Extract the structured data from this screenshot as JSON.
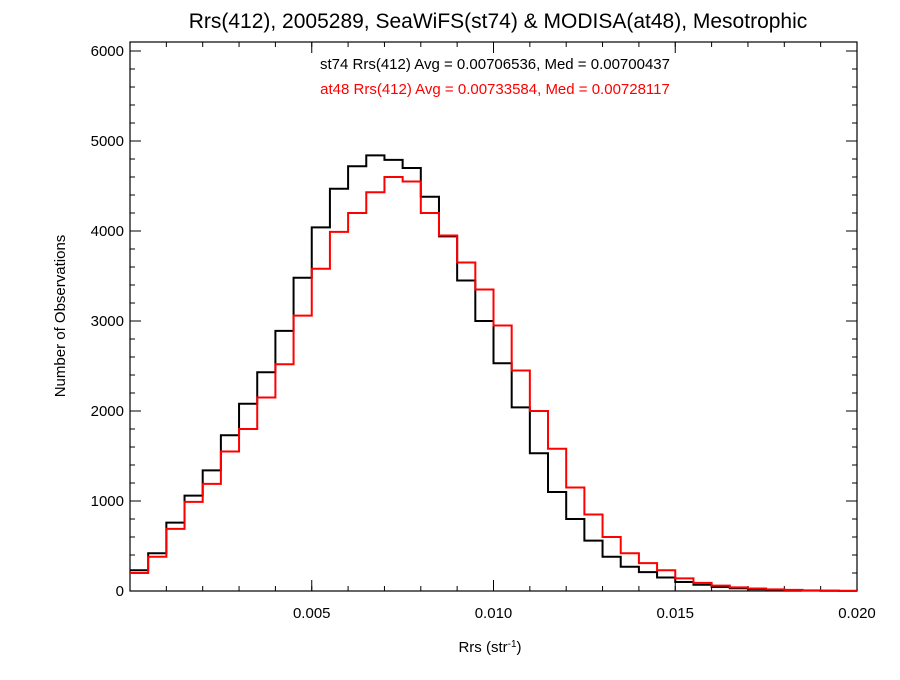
{
  "chart_data": {
    "type": "line",
    "title": "Rrs(412), 2005289, SeaWiFS(st74) & MODISA(at48), Mesotrophic",
    "xlabel_main": "Rrs (str",
    "xlabel_sup": "-1",
    "xlabel_close": ")",
    "ylabel": "Number of Observations",
    "xlim": [
      0.0,
      0.02
    ],
    "ylim": [
      0,
      6100
    ],
    "x_ticks": [
      {
        "value": 0.005,
        "label": "0.005"
      },
      {
        "value": 0.01,
        "label": "0.010"
      },
      {
        "value": 0.015,
        "label": "0.015"
      },
      {
        "value": 0.02,
        "label": "0.020"
      }
    ],
    "y_ticks": [
      {
        "value": 0,
        "label": "0"
      },
      {
        "value": 1000,
        "label": "1000"
      },
      {
        "value": 2000,
        "label": "2000"
      },
      {
        "value": 3000,
        "label": "3000"
      },
      {
        "value": 4000,
        "label": "4000"
      },
      {
        "value": 5000,
        "label": "5000"
      },
      {
        "value": 6000,
        "label": "6000"
      }
    ],
    "annotations": [
      {
        "text": "st74 Rrs(412) Avg = 0.00706536, Med = 0.00700437",
        "color": "#000000"
      },
      {
        "text": "at48 Rrs(412) Avg = 0.00733584, Med = 0.00728117",
        "color": "#ff0000"
      }
    ],
    "series": [
      {
        "color": "#000000",
        "points": [
          [
            0.0,
            230
          ],
          [
            0.0005,
            420
          ],
          [
            0.001,
            760
          ],
          [
            0.0015,
            1060
          ],
          [
            0.002,
            1340
          ],
          [
            0.0025,
            1730
          ],
          [
            0.003,
            2080
          ],
          [
            0.0035,
            2430
          ],
          [
            0.004,
            2890
          ],
          [
            0.0045,
            3480
          ],
          [
            0.005,
            4040
          ],
          [
            0.0055,
            4470
          ],
          [
            0.006,
            4720
          ],
          [
            0.0065,
            4840
          ],
          [
            0.007,
            4790
          ],
          [
            0.0075,
            4700
          ],
          [
            0.008,
            4380
          ],
          [
            0.0085,
            3940
          ],
          [
            0.009,
            3450
          ],
          [
            0.0095,
            3000
          ],
          [
            0.01,
            2530
          ],
          [
            0.0105,
            2040
          ],
          [
            0.011,
            1530
          ],
          [
            0.0115,
            1100
          ],
          [
            0.012,
            800
          ],
          [
            0.0125,
            560
          ],
          [
            0.013,
            380
          ],
          [
            0.0135,
            270
          ],
          [
            0.014,
            210
          ],
          [
            0.0145,
            150
          ],
          [
            0.015,
            100
          ],
          [
            0.0155,
            70
          ],
          [
            0.016,
            45
          ],
          [
            0.0165,
            30
          ],
          [
            0.017,
            20
          ],
          [
            0.0175,
            12
          ],
          [
            0.018,
            8
          ],
          [
            0.0185,
            5
          ],
          [
            0.019,
            3
          ],
          [
            0.0195,
            2
          ],
          [
            0.02,
            1
          ]
        ]
      },
      {
        "color": "#ff0000",
        "points": [
          [
            0.0,
            200
          ],
          [
            0.0005,
            380
          ],
          [
            0.001,
            690
          ],
          [
            0.0015,
            990
          ],
          [
            0.002,
            1190
          ],
          [
            0.0025,
            1550
          ],
          [
            0.003,
            1800
          ],
          [
            0.0035,
            2150
          ],
          [
            0.004,
            2520
          ],
          [
            0.0045,
            3060
          ],
          [
            0.005,
            3580
          ],
          [
            0.0055,
            3990
          ],
          [
            0.006,
            4200
          ],
          [
            0.0065,
            4430
          ],
          [
            0.007,
            4600
          ],
          [
            0.0075,
            4550
          ],
          [
            0.008,
            4200
          ],
          [
            0.0085,
            3950
          ],
          [
            0.009,
            3650
          ],
          [
            0.0095,
            3350
          ],
          [
            0.01,
            2950
          ],
          [
            0.0105,
            2450
          ],
          [
            0.011,
            2000
          ],
          [
            0.0115,
            1580
          ],
          [
            0.012,
            1150
          ],
          [
            0.0125,
            850
          ],
          [
            0.013,
            600
          ],
          [
            0.0135,
            420
          ],
          [
            0.014,
            310
          ],
          [
            0.0145,
            230
          ],
          [
            0.015,
            140
          ],
          [
            0.0155,
            90
          ],
          [
            0.016,
            60
          ],
          [
            0.0165,
            40
          ],
          [
            0.017,
            28
          ],
          [
            0.0175,
            18
          ],
          [
            0.018,
            12
          ],
          [
            0.0185,
            7
          ],
          [
            0.019,
            4
          ],
          [
            0.0195,
            2
          ],
          [
            0.02,
            1
          ]
        ]
      }
    ]
  }
}
